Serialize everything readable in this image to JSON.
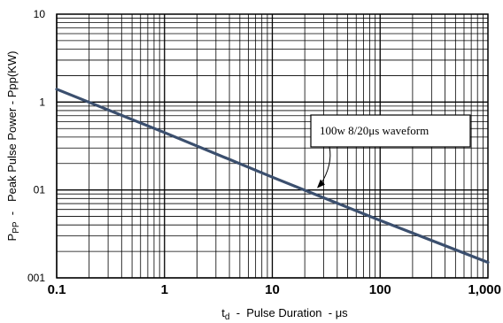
{
  "chart_data": {
    "type": "line",
    "xscale": "log",
    "yscale": "log",
    "xlim": [
      0.1,
      1000
    ],
    "ylim": [
      0.01,
      10
    ],
    "x_tick_labels": [
      "0.1",
      "1",
      "10",
      "100",
      "1,000"
    ],
    "y_tick_labels": [
      "001",
      "01",
      "1",
      "10"
    ],
    "grid": true,
    "xlabel": {
      "main": "t",
      "sub": "d",
      "rest": "  -  Pulse Duration  - μs"
    },
    "ylabel": {
      "main": "P",
      "sub": "PP",
      "rest": "  -   Peak Pulse Power - Ppp(KW)"
    },
    "series": [
      {
        "color": "#3b4f6e",
        "x": [
          0.1,
          1,
          10,
          100,
          1000
        ],
        "y": [
          1.4,
          0.45,
          0.14,
          0.045,
          0.015
        ]
      }
    ],
    "annotation": {
      "text": "100w 8/20μs waveform",
      "x": 25,
      "y": 0.1
    }
  }
}
